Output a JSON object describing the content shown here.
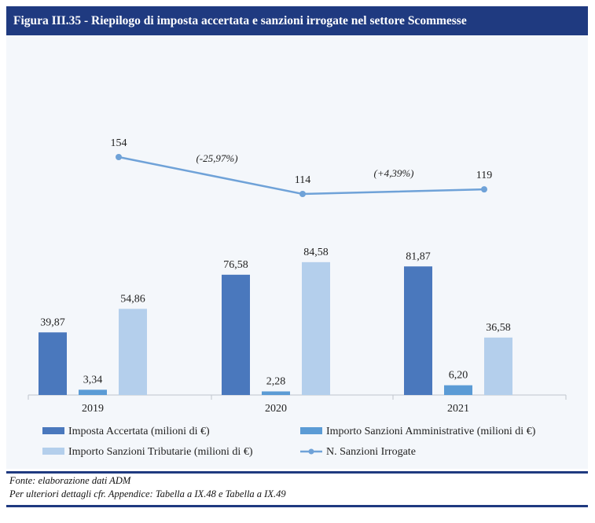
{
  "header": {
    "title": "Figura III.35 - Riepilogo di imposta accertata e sanzioni irrogate nel settore Scommesse"
  },
  "chart_data": {
    "type": "bar",
    "categories": [
      "2019",
      "2020",
      "2021"
    ],
    "series": [
      {
        "name": "Imposta Accertata  (milioni di €)",
        "values": [
          39.87,
          76.58,
          81.87
        ],
        "labels": [
          "39,87",
          "76,58",
          "81,87"
        ],
        "color": "#4a78bd"
      },
      {
        "name": "Importo Sanzioni Amministrative (milioni di €)",
        "values": [
          3.34,
          2.28,
          6.2
        ],
        "labels": [
          "3,34",
          "2,28",
          "6,20"
        ],
        "color": "#5b9bd5"
      },
      {
        "name": "Importo Sanzioni Tributarie (milioni di €)",
        "values": [
          54.86,
          84.58,
          36.58
        ],
        "labels": [
          "54,86",
          "84,58",
          "36,58"
        ],
        "color": "#b4cfec"
      }
    ],
    "line_series": {
      "name": "N. Sanzioni Irrogate",
      "values": [
        154,
        114,
        119
      ],
      "labels": [
        "154",
        "114",
        "119"
      ],
      "color": "#6fa2d8"
    },
    "annotations": [
      "(-25,97%)",
      "(+4,39%)"
    ],
    "grid": false,
    "legend_position": "bottom"
  },
  "footer": {
    "source": "Fonte: elaborazione dati ADM",
    "details": "Per ulteriori dettagli cfr. Appendice: Tabella a IX.48 e Tabella a IX.49"
  }
}
